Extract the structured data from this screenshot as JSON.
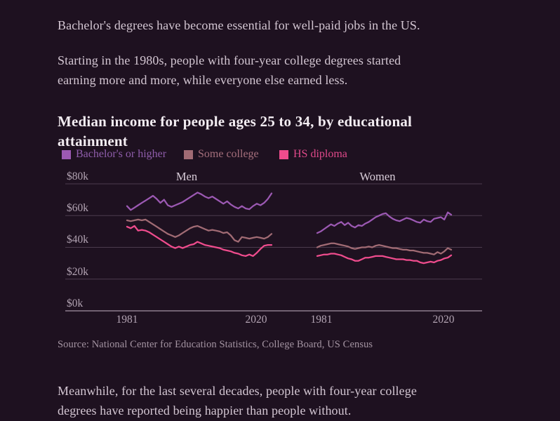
{
  "article": {
    "p1": "Bachelor's degrees have become essential for well-paid jobs in the US.",
    "p2": "Starting in the 1980s, people with four-year college degrees started\nearning more and more, while everyone else earned less.",
    "p3": "Meanwhile, for the last several decades, people with four-year college\ndegrees have reported being happier than people without."
  },
  "chart_data": {
    "type": "line",
    "title": "Median income for people ages 25 to 34, by educational\nattainment",
    "source": "Source: National Center for Education Statistics, College Board, US Census",
    "facets": [
      "Men",
      "Women"
    ],
    "x_tick_labels": [
      "1981",
      "2020"
    ],
    "y_ticks": [
      "$0k",
      "$20k",
      "$40k",
      "$60k",
      "$80k"
    ],
    "y_tick_values": [
      0,
      20,
      40,
      60,
      80
    ],
    "ylim": [
      0,
      80
    ],
    "units": "thousands of USD, median income",
    "grid": true,
    "legend_position": "top",
    "colors": {
      "background": "#1e1120",
      "gridline": "#4c3c4e",
      "axis": "#a393a3",
      "bachelors": "#9c59b3",
      "some_college": "#a16b74",
      "hs_diploma": "#ef4c8d"
    },
    "legend": [
      {
        "label": "Bachelor's or higher",
        "color": "#9c59b3",
        "text_color": "#8f5dab"
      },
      {
        "label": "Some college",
        "color": "#a16b74",
        "text_color": "#a56f7c"
      },
      {
        "label": "HS diploma",
        "color": "#ef4c8d",
        "text_color": "#e0498a"
      }
    ],
    "x_years": [
      1981,
      1982,
      1983,
      1984,
      1985,
      1986,
      1987,
      1988,
      1989,
      1990,
      1991,
      1992,
      1993,
      1994,
      1995,
      1996,
      1997,
      1998,
      1999,
      2000,
      2001,
      2002,
      2003,
      2004,
      2005,
      2006,
      2007,
      2008,
      2009,
      2010,
      2011,
      2012,
      2013,
      2014,
      2015,
      2016,
      2017,
      2018,
      2019,
      2020
    ],
    "series": [
      {
        "name": "Bachelor's or higher",
        "facet": "Men",
        "color": "#9c59b3",
        "values": [
          66,
          63.5,
          65,
          66.5,
          68,
          69.5,
          71,
          72.5,
          70.5,
          68,
          70,
          66.5,
          65.5,
          66.5,
          67.5,
          68.5,
          70,
          71.5,
          73,
          74.5,
          73.5,
          72,
          71,
          72,
          70.5,
          69,
          67.5,
          69,
          67,
          65.5,
          64.5,
          66,
          64.5,
          64,
          66,
          67.5,
          66.5,
          68,
          70.5,
          74
        ]
      },
      {
        "name": "Some college",
        "facet": "Men",
        "color": "#a16b74",
        "values": [
          57,
          56.5,
          57,
          57.5,
          57,
          57.5,
          56,
          54.5,
          53,
          51.5,
          50,
          48.5,
          47.5,
          46.5,
          47.5,
          49,
          50.5,
          52,
          53,
          53.5,
          52.5,
          51.5,
          50.5,
          51,
          50.5,
          50,
          49,
          49.5,
          47.5,
          44.5,
          43.5,
          46.5,
          46,
          45.5,
          46,
          46.5,
          46,
          45.5,
          46.5,
          48.5
        ]
      },
      {
        "name": "HS diploma",
        "facet": "Men",
        "color": "#ef4c8d",
        "values": [
          53,
          52,
          53.5,
          50.5,
          51,
          50.5,
          49.5,
          48,
          46.5,
          45,
          43.5,
          42,
          40.5,
          39.5,
          40.5,
          39.5,
          40.5,
          41.5,
          42,
          43.5,
          42.5,
          41.5,
          41,
          40.5,
          40,
          39.5,
          38.5,
          38,
          37.5,
          36.5,
          36,
          35,
          34.5,
          35.5,
          34.5,
          36.5,
          39,
          41,
          41.5,
          41.5
        ]
      },
      {
        "name": "Bachelor's or higher",
        "facet": "Women",
        "color": "#9c59b3",
        "values": [
          49,
          50,
          51.5,
          53,
          54.5,
          53.5,
          55,
          56,
          54,
          55.5,
          53.5,
          52.5,
          54,
          53.5,
          55,
          56,
          57.5,
          59,
          60,
          61,
          61.5,
          59.5,
          58,
          57,
          56.5,
          57.5,
          58.5,
          58,
          57,
          56,
          55.5,
          57.5,
          56.5,
          56,
          58,
          58.5,
          59,
          57.5,
          62,
          60.5
        ]
      },
      {
        "name": "Some college",
        "facet": "Women",
        "color": "#a16b74",
        "values": [
          40,
          41,
          41.5,
          42,
          42.5,
          42.5,
          42,
          41.5,
          41,
          40.5,
          39.5,
          39,
          39.5,
          40,
          40,
          40.5,
          40,
          41,
          41.5,
          41,
          40.5,
          40,
          39.5,
          39.5,
          39,
          38.5,
          38.5,
          38,
          38,
          37.5,
          37,
          36.5,
          36.5,
          36,
          35.5,
          37,
          36,
          37.5,
          39.5,
          38.5
        ]
      },
      {
        "name": "HS diploma",
        "facet": "Women",
        "color": "#ef4c8d",
        "values": [
          34.5,
          35,
          35.5,
          35.5,
          36,
          36,
          35.5,
          35,
          34,
          33,
          32.5,
          31.5,
          31.5,
          32.5,
          33.5,
          33.5,
          34,
          34.5,
          34.5,
          34.5,
          34,
          33.5,
          33,
          32.5,
          32.5,
          32.5,
          32,
          32,
          31.5,
          31.5,
          30.5,
          30,
          30.5,
          31,
          30.5,
          31.5,
          32,
          33,
          33.5,
          35
        ]
      }
    ]
  }
}
